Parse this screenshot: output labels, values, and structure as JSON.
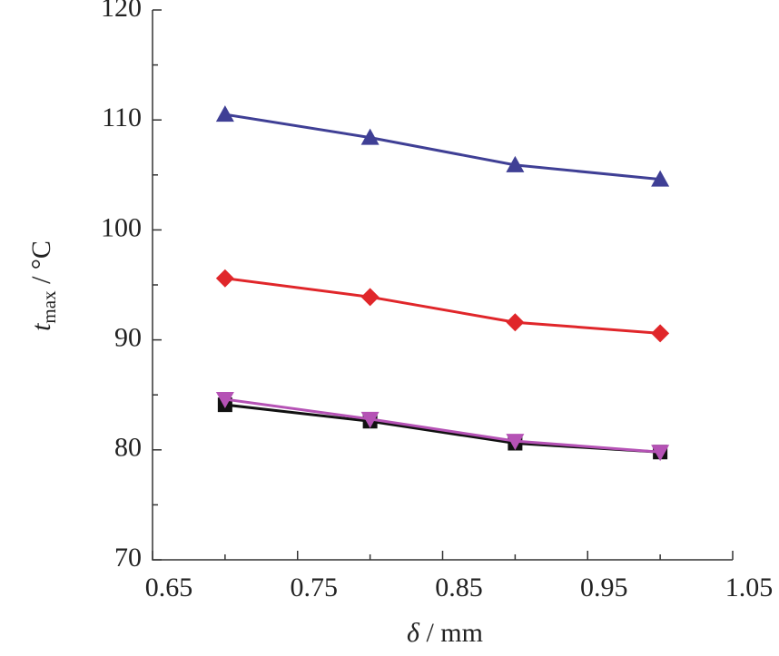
{
  "chart_data": {
    "type": "line",
    "x_label": {
      "symbol": "δ",
      "unit": " / mm"
    },
    "y_label": {
      "symbol": "t",
      "subscript": "max",
      "unit": " / °C"
    },
    "xlim": [
      0.65,
      1.05
    ],
    "xticks": [
      0.65,
      0.75,
      0.85,
      0.95,
      1.05
    ],
    "xminor": [
      0.7,
      0.8,
      0.9,
      1.0
    ],
    "ylim": [
      70,
      120
    ],
    "yticks": [
      70,
      80,
      90,
      100,
      110,
      120
    ],
    "yminor": [
      75,
      85,
      95,
      105,
      115
    ],
    "x": [
      0.7,
      0.8,
      0.9,
      1.0
    ],
    "series": [
      {
        "color": "#3f3f95",
        "marker": "triangle-up",
        "values": [
          110.5,
          108.4,
          105.9,
          104.6
        ]
      },
      {
        "color": "#e0262a",
        "marker": "diamond",
        "values": [
          95.6,
          93.9,
          91.6,
          90.6
        ]
      },
      {
        "color": "#111111",
        "marker": "square",
        "values": [
          84.1,
          82.6,
          80.6,
          79.8
        ]
      },
      {
        "color": "#b552b5",
        "marker": "triangle-down",
        "values": [
          84.6,
          82.8,
          80.8,
          79.8
        ]
      }
    ]
  }
}
